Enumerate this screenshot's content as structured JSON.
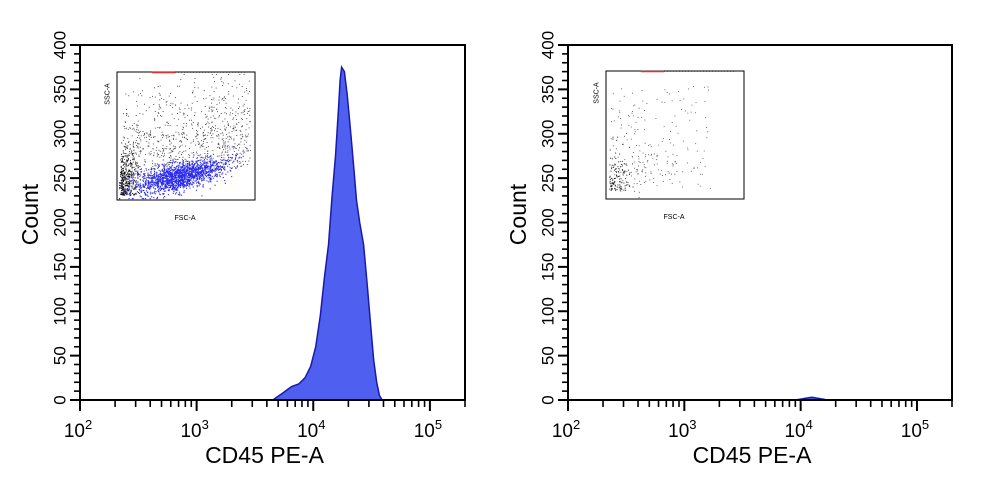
{
  "chart_data": [
    {
      "type": "area",
      "xlabel": "CD45 PE-A",
      "ylabel": "Count",
      "x_scale": "log",
      "xlim": [
        100,
        200000
      ],
      "ylim": [
        0,
        400
      ],
      "x_tick_labels": [
        "10^2",
        "10^3",
        "10^4",
        "10^5"
      ],
      "y_tick_labels": [
        "0",
        "50",
        "100",
        "150",
        "200",
        "250",
        "300",
        "350",
        "400"
      ],
      "y_ticks": [
        0,
        50,
        100,
        150,
        200,
        250,
        300,
        350,
        400
      ],
      "grid": false,
      "fill_color": "#4f5ff0",
      "edge_color": "#1a1aa8",
      "x": [
        4500,
        5500,
        6500,
        7500,
        8500,
        9500,
        10500,
        11500,
        12500,
        13500,
        14500,
        15500,
        16500,
        17000,
        17500,
        18500,
        19500,
        20500,
        21500,
        22500,
        23500,
        25000,
        27000,
        29000,
        31000,
        33000,
        35000,
        37000,
        39000
      ],
      "y": [
        0,
        8,
        15,
        18,
        25,
        38,
        60,
        95,
        140,
        175,
        230,
        275,
        330,
        360,
        375,
        370,
        345,
        315,
        285,
        255,
        225,
        200,
        175,
        130,
        85,
        45,
        20,
        5,
        0
      ],
      "inset": {
        "xlabel": "FSC-A",
        "ylabel": "SSC-A",
        "gate_color": "#2727f0",
        "point_color": "#333333"
      }
    },
    {
      "type": "area",
      "xlabel": "CD45 PE-A",
      "ylabel": "Count",
      "x_scale": "log",
      "xlim": [
        100,
        200000
      ],
      "ylim": [
        0,
        400
      ],
      "x_tick_labels": [
        "10^2",
        "10^3",
        "10^4",
        "10^5"
      ],
      "y_tick_labels": [
        "0",
        "50",
        "100",
        "150",
        "200",
        "250",
        "300",
        "350",
        "400"
      ],
      "y_ticks": [
        0,
        50,
        100,
        150,
        200,
        250,
        300,
        350,
        400
      ],
      "grid": false,
      "fill_color": "#4f5ff0",
      "edge_color": "#1a1aa8",
      "x": [
        9000,
        10000,
        11000,
        12500,
        14000,
        15500,
        17000
      ],
      "y": [
        0,
        1,
        2,
        3,
        2,
        1,
        0
      ],
      "inset": {
        "xlabel": "FSC-A",
        "ylabel": "SSC-A",
        "gate_color": "#2727f0",
        "point_color": "#333333"
      }
    }
  ]
}
